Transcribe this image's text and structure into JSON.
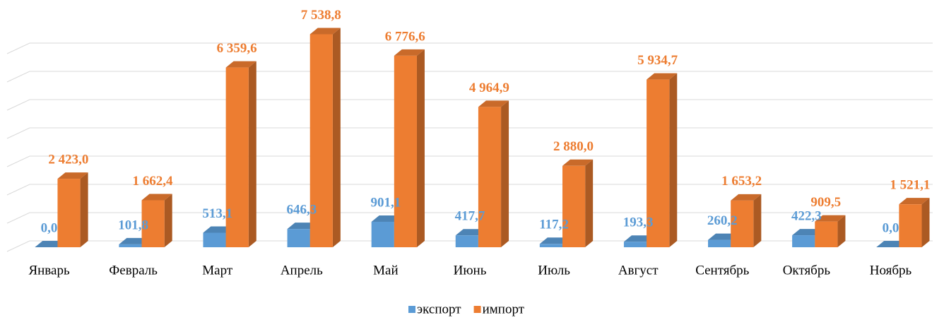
{
  "chart_data": {
    "type": "bar3d",
    "categories": [
      "Январь",
      "Февраль",
      "Март",
      "Апрель",
      "Май",
      "Июнь",
      "Июль",
      "Август",
      "Сентябрь",
      "Октябрь",
      "Ноябрь"
    ],
    "series": [
      {
        "name": "экспорт",
        "color": "#5b9bd5",
        "values": [
          0.0,
          101.8,
          513.1,
          646.3,
          901.1,
          417.7,
          117.2,
          193.3,
          260.2,
          422.3,
          0.0
        ],
        "value_labels": [
          "0,0",
          "101,8",
          "513,1",
          "646,3",
          "901,1",
          "417,7",
          "117,2",
          "193,3",
          "260,2",
          "422,3",
          "0,0"
        ]
      },
      {
        "name": "импорт",
        "color": "#ed7d31",
        "values": [
          2423.0,
          1662.4,
          6359.6,
          7538.8,
          6776.6,
          4964.9,
          2880.0,
          5934.7,
          1653.2,
          909.5,
          1521.1
        ],
        "value_labels": [
          "2 423,0",
          "1 662,4",
          "6 359,6",
          "7 538,8",
          "6 776,6",
          "4 964,9",
          "2 880,0",
          "5 934,7",
          "1 653,2",
          "909,5",
          "1 521,1"
        ]
      }
    ],
    "ylim": [
      0,
      8000
    ],
    "yticks": [
      0,
      1000,
      2000,
      3000,
      4000,
      5000,
      6000,
      7000
    ],
    "grid": true,
    "legend": "bottom"
  }
}
